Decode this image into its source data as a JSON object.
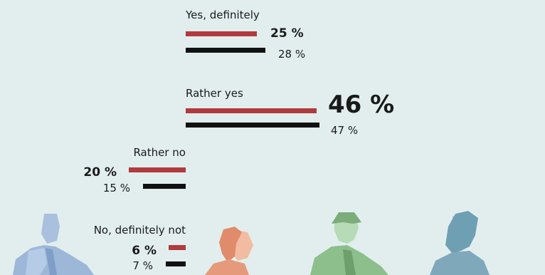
{
  "chart_data": {
    "type": "bar",
    "categories": [
      "Yes, definitely",
      "Rather yes",
      "Rather no",
      "No, definitely not"
    ],
    "series": [
      {
        "values": [
          25,
          46,
          20,
          6
        ],
        "color": "#b03a3e"
      },
      {
        "values": [
          28,
          47,
          15,
          7
        ],
        "color": "#111111"
      }
    ],
    "value_labels": {
      "red": [
        "25 %",
        "46 %",
        "20 %",
        "6 %"
      ],
      "black": [
        "28 %",
        "47 %",
        "15 %",
        "7 %"
      ]
    },
    "direction": [
      "right",
      "right",
      "left",
      "left"
    ],
    "unit": "%",
    "grid": false,
    "legend": "none"
  },
  "illustrations": [
    {
      "icon": "businessman-silhouette-icon",
      "color": "#9db7d8"
    },
    {
      "icon": "woman-red-hair-icon",
      "color": "#e08b6c"
    },
    {
      "icon": "man-green-icon",
      "color": "#8cbf8c"
    },
    {
      "icon": "woman-teal-icon",
      "color": "#6f9fb2"
    }
  ]
}
